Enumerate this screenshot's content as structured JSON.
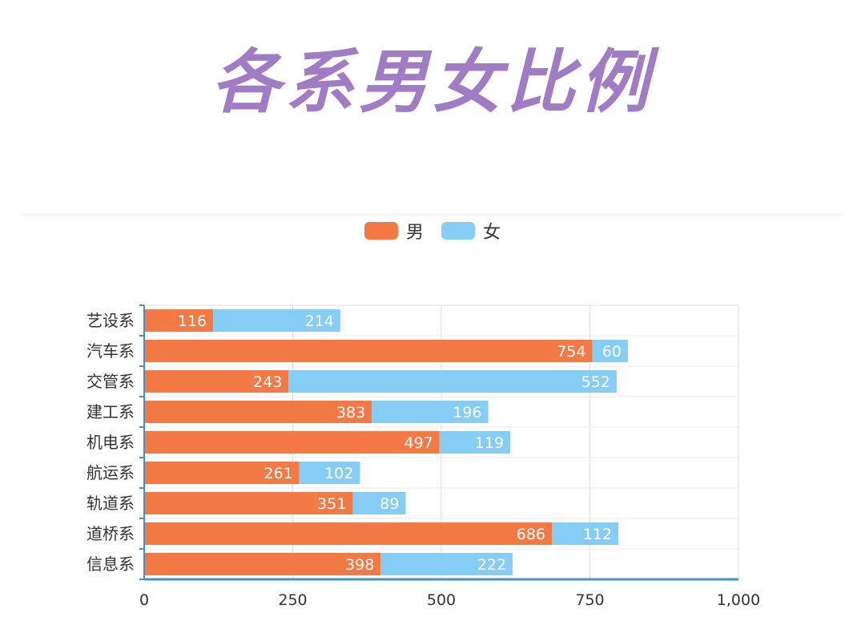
{
  "title": "各系男女比例",
  "colors": {
    "male": "#f47a45",
    "female": "#86cdf6",
    "axis": "#4a90c8",
    "grid": "#dddddd",
    "title": "#a07cc5"
  },
  "legend": [
    {
      "name": "男",
      "color": "#f47a45"
    },
    {
      "name": "女",
      "color": "#86cdf6"
    }
  ],
  "chart_data": {
    "type": "bar",
    "orientation": "horizontal",
    "stacked": true,
    "categories": [
      "艺设系",
      "汽车系",
      "交管系",
      "建工系",
      "机电系",
      "航运系",
      "轨道系",
      "道桥系",
      "信息系"
    ],
    "series": [
      {
        "name": "男",
        "values": [
          116,
          754,
          243,
          383,
          497,
          261,
          351,
          686,
          398
        ]
      },
      {
        "name": "女",
        "values": [
          214,
          60,
          552,
          196,
          119,
          102,
          89,
          112,
          222
        ]
      }
    ],
    "xlim": [
      0,
      1000
    ],
    "xticks": [
      "0",
      "250",
      "500",
      "750",
      "1,000"
    ],
    "xtick_values": [
      0,
      250,
      500,
      750,
      1000
    ],
    "grid": true,
    "legend_position": "top-center",
    "data_labels": true
  }
}
